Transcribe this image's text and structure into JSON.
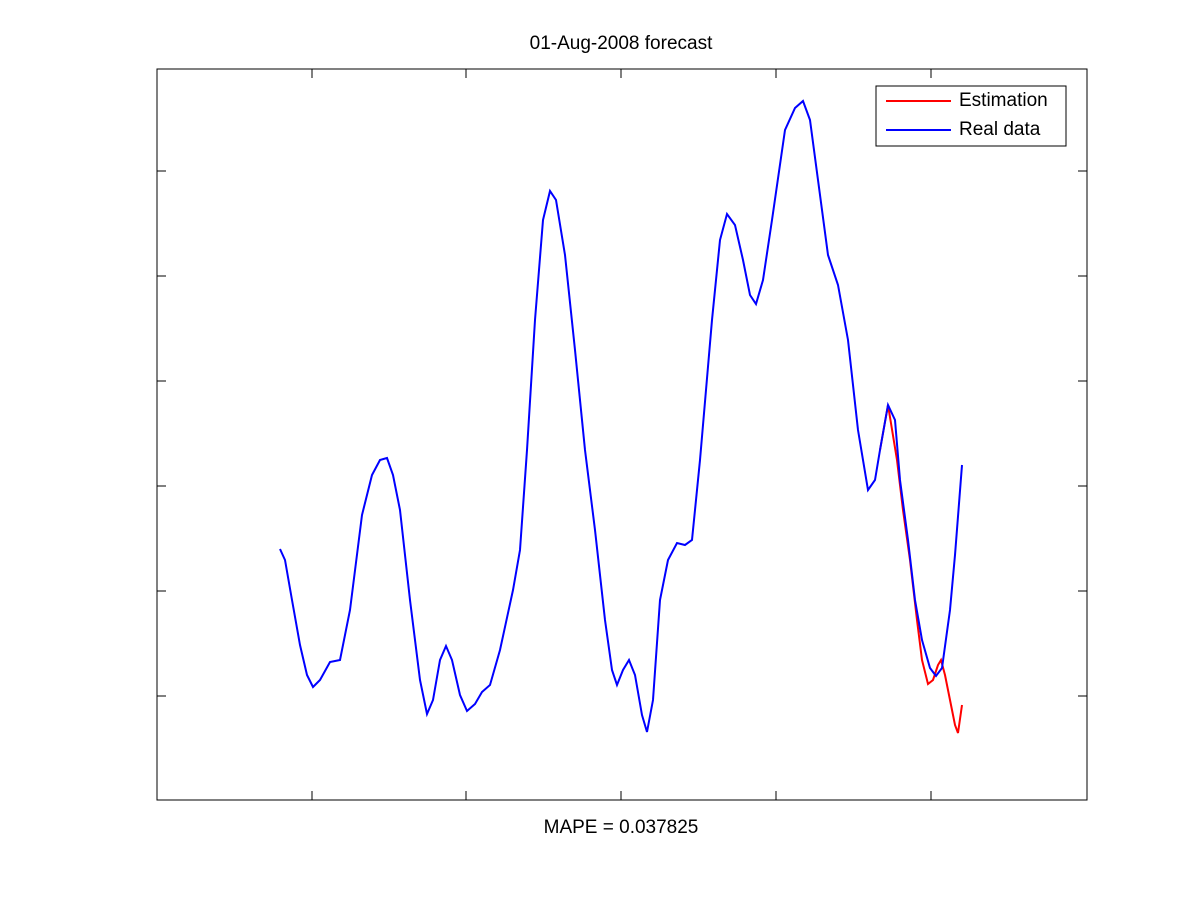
{
  "chart_data": {
    "type": "line",
    "title": "01-Aug-2008 forecast",
    "xlabel": "MAPE = 0.037825",
    "xlim": [
      0,
      930
    ],
    "xticks": [
      155,
      309,
      464,
      619,
      774
    ],
    "ylim": [
      0,
      731
    ],
    "yticks": [
      104,
      209,
      314,
      419,
      524,
      629
    ],
    "legend": "upper right",
    "series": [
      {
        "name": "Estimation",
        "color": "#ff0000",
        "x": [
          723,
          731,
          740,
          746,
          753,
          760,
          765,
          771,
          776,
          781,
          784,
          788,
          793,
          798,
          801,
          805
        ],
        "values": [
          350,
          395,
          340,
          290,
          240,
          180,
          140,
          116,
          120,
          135,
          140,
          125,
          100,
          75,
          67,
          95
        ]
      },
      {
        "name": "Real data",
        "color": "#0000ff",
        "x": [
          123,
          128,
          135,
          143,
          150,
          156,
          163,
          173,
          183,
          193,
          205,
          215,
          223,
          230,
          236,
          243,
          253,
          263,
          270,
          276,
          283,
          289,
          295,
          303,
          310,
          318,
          325,
          333,
          343,
          356,
          363,
          370,
          378,
          386,
          393,
          399,
          408,
          418,
          428,
          438,
          448,
          455,
          460,
          466,
          472,
          478,
          485,
          490,
          496,
          503,
          511,
          520,
          528,
          535,
          543,
          555,
          563,
          570,
          578,
          586,
          593,
          599,
          606,
          615,
          628,
          638,
          646,
          653,
          661,
          671,
          681,
          691,
          701,
          711,
          718,
          723,
          731,
          738,
          743,
          751,
          758,
          765,
          773,
          779,
          785,
          793,
          798,
          805
        ],
        "values": [
          251,
          240,
          200,
          155,
          125,
          113,
          120,
          138,
          140,
          190,
          285,
          325,
          340,
          342,
          325,
          290,
          200,
          120,
          86,
          100,
          140,
          154,
          140,
          105,
          89,
          96,
          108,
          115,
          150,
          210,
          250,
          350,
          480,
          580,
          609,
          600,
          545,
          450,
          350,
          270,
          180,
          130,
          115,
          130,
          140,
          125,
          85,
          68,
          100,
          200,
          240,
          257,
          255,
          260,
          340,
          480,
          560,
          586,
          575,
          540,
          505,
          496,
          520,
          580,
          670,
          692,
          699,
          680,
          620,
          545,
          515,
          460,
          370,
          310,
          320,
          350,
          395,
          380,
          320,
          260,
          200,
          160,
          132,
          124,
          132,
          190,
          245,
          335
        ]
      }
    ]
  }
}
